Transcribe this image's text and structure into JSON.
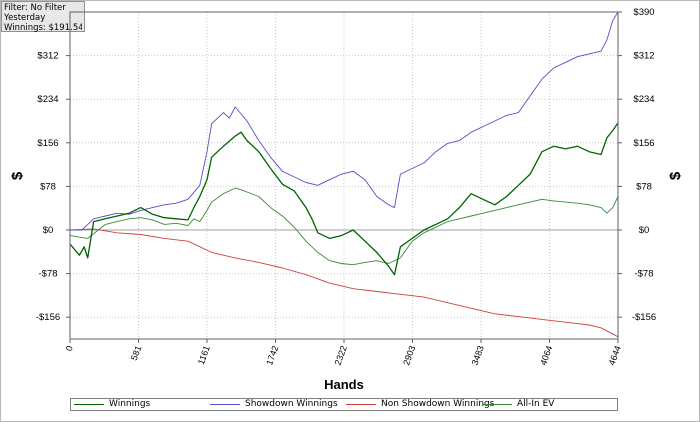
{
  "filter_box": {
    "line1": "Filter: No Filter",
    "line2": "Yesterday",
    "line3": "Winnings: $191.54"
  },
  "chart_data": {
    "type": "line",
    "xlabel": "Hands",
    "ylabel": "$",
    "xlim": [
      0,
      4644
    ],
    "ylim": [
      -195,
      390
    ],
    "x_ticks": [
      0,
      581,
      1161,
      1742,
      2322,
      2903,
      3483,
      4064,
      4644
    ],
    "x_tick_labels": [
      "0",
      "581",
      "1161",
      "1742",
      "2322",
      "2903",
      "3483",
      "4064",
      "4644"
    ],
    "y_ticks": [
      390,
      312,
      234,
      156,
      78,
      0,
      -78,
      -156
    ],
    "y_tick_labels": [
      "$390",
      "$312",
      "$234",
      "$156",
      "$78",
      "$0",
      "-$78",
      "-$156"
    ],
    "y_ticks_left": [
      312,
      234,
      156,
      78,
      0,
      -78,
      -156
    ],
    "y_tick_labels_left": [
      "$312",
      "$234",
      "$156",
      "$78",
      "$0",
      "-$78",
      "-$156"
    ],
    "grid": true,
    "legend_position": "bottom",
    "series": [
      {
        "name": "Winnings",
        "color": "#006400",
        "x": [
          0,
          80,
          120,
          150,
          200,
          300,
          400,
          500,
          600,
          700,
          800,
          900,
          1000,
          1050,
          1100,
          1161,
          1200,
          1300,
          1400,
          1450,
          1500,
          1600,
          1700,
          1800,
          1900,
          2000,
          2050,
          2100,
          2200,
          2300,
          2400,
          2500,
          2600,
          2700,
          2750,
          2800,
          2900,
          3000,
          3100,
          3200,
          3300,
          3400,
          3500,
          3600,
          3700,
          3800,
          3900,
          4000,
          4100,
          4200,
          4300,
          4400,
          4500,
          4550,
          4600,
          4644
        ],
        "y": [
          -25,
          -45,
          -30,
          -50,
          15,
          20,
          25,
          30,
          40,
          28,
          22,
          20,
          18,
          40,
          60,
          90,
          130,
          150,
          168,
          175,
          160,
          140,
          110,
          82,
          70,
          40,
          20,
          -5,
          -15,
          -10,
          0,
          -20,
          -40,
          -65,
          -80,
          -30,
          -15,
          0,
          10,
          20,
          40,
          65,
          55,
          45,
          60,
          80,
          100,
          140,
          150,
          145,
          150,
          140,
          135,
          165,
          178,
          191.54
        ]
      },
      {
        "name": "Showdown Winnings",
        "color": "#5050c8",
        "x": [
          0,
          100,
          150,
          200,
          300,
          400,
          500,
          600,
          700,
          800,
          900,
          1000,
          1100,
          1161,
          1200,
          1300,
          1350,
          1400,
          1500,
          1600,
          1700,
          1800,
          1900,
          2000,
          2100,
          2200,
          2300,
          2400,
          2500,
          2600,
          2700,
          2750,
          2800,
          2900,
          3000,
          3100,
          3200,
          3300,
          3400,
          3500,
          3600,
          3700,
          3800,
          3900,
          4000,
          4100,
          4200,
          4300,
          4400,
          4500,
          4550,
          4600,
          4644
        ],
        "y": [
          0,
          0,
          10,
          20,
          25,
          30,
          28,
          35,
          40,
          45,
          48,
          55,
          80,
          140,
          190,
          210,
          200,
          220,
          195,
          160,
          130,
          105,
          95,
          85,
          80,
          90,
          100,
          105,
          90,
          60,
          45,
          40,
          100,
          110,
          120,
          140,
          155,
          160,
          175,
          185,
          195,
          205,
          210,
          240,
          270,
          290,
          300,
          310,
          315,
          320,
          340,
          375,
          390
        ]
      },
      {
        "name": "Non Showdown Winnings",
        "color": "#d04040",
        "x": [
          0,
          200,
          400,
          600,
          800,
          1000,
          1200,
          1400,
          1600,
          1800,
          2000,
          2200,
          2400,
          2600,
          2800,
          3000,
          3200,
          3400,
          3600,
          3800,
          4000,
          4200,
          4400,
          4500,
          4644
        ],
        "y": [
          0,
          2,
          -5,
          -8,
          -15,
          -20,
          -40,
          -50,
          -58,
          -68,
          -80,
          -95,
          -105,
          -110,
          -115,
          -120,
          -130,
          -140,
          -150,
          -155,
          -160,
          -165,
          -170,
          -175,
          -191
        ]
      },
      {
        "name": "All-In EV",
        "color": "#3a8a3a",
        "x": [
          0,
          150,
          300,
          400,
          500,
          600,
          700,
          800,
          900,
          1000,
          1050,
          1100,
          1161,
          1200,
          1300,
          1400,
          1450,
          1500,
          1600,
          1700,
          1800,
          1900,
          2000,
          2100,
          2200,
          2300,
          2400,
          2500,
          2600,
          2700,
          2800,
          2900,
          3000,
          3100,
          3200,
          3300,
          3400,
          3500,
          3600,
          3700,
          3800,
          3900,
          4000,
          4100,
          4200,
          4300,
          4400,
          4500,
          4550,
          4600,
          4644
        ],
        "y": [
          -10,
          -15,
          10,
          15,
          20,
          22,
          18,
          10,
          12,
          8,
          20,
          15,
          35,
          50,
          65,
          75,
          72,
          68,
          60,
          40,
          25,
          5,
          -20,
          -40,
          -55,
          -60,
          -62,
          -58,
          -55,
          -60,
          -50,
          -20,
          -5,
          5,
          15,
          20,
          25,
          30,
          35,
          40,
          45,
          50,
          55,
          52,
          50,
          48,
          45,
          40,
          30,
          40,
          60
        ]
      }
    ]
  }
}
